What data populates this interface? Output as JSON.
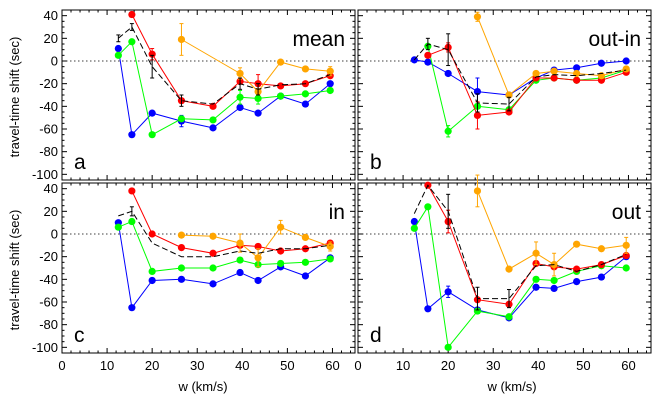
{
  "figure": {
    "ylabel": "travel-time shift (sec)",
    "xlabel": "w (km/s)"
  },
  "chart_data": [
    {
      "type": "line",
      "title": "mean",
      "panel_letter": "a",
      "xlim": [
        0,
        65
      ],
      "ylim": [
        -105,
        45
      ],
      "xticks": [
        0,
        10,
        20,
        30,
        40,
        50,
        60
      ],
      "yticks": [
        -100,
        -80,
        -60,
        -40,
        -20,
        0,
        20,
        40
      ],
      "zero_line": "dotted",
      "series": [
        {
          "color": "#0000ff",
          "x": [
            12.5,
            15.5,
            20,
            26.5,
            33.5,
            39.5,
            43.5,
            48.5,
            54,
            59.5
          ],
          "y": [
            11,
            -65,
            -46,
            -53,
            -59,
            -41,
            -46,
            -31,
            -38,
            -20
          ],
          "err": [
            0,
            0,
            0,
            5,
            0,
            0,
            0,
            0,
            0,
            0
          ]
        },
        {
          "color": "#00ff00",
          "x": [
            12.5,
            15.5,
            20,
            26.5,
            33.5,
            39.5,
            43.5,
            48.5,
            54,
            59.5
          ],
          "y": [
            5,
            17,
            -65,
            -51,
            -52,
            -32,
            -33,
            -31,
            -29,
            -26
          ],
          "err": [
            0,
            0,
            0,
            0,
            0,
            6,
            5,
            0,
            0,
            0
          ]
        },
        {
          "color": "#ff0000",
          "x": [
            15.5,
            20,
            26.5,
            33.5,
            39.5,
            43.5,
            48.5,
            54,
            59.5
          ],
          "y": [
            41,
            6,
            -35,
            -40,
            -18,
            -20,
            -22,
            -20,
            -13
          ],
          "err": [
            0,
            5,
            0,
            0,
            0,
            8,
            0,
            0,
            0
          ]
        },
        {
          "color": "#ffa500",
          "x": [
            26.5,
            39.5,
            43.5,
            48.5,
            54,
            59.5
          ],
          "y": [
            19,
            -11,
            -27,
            -1,
            -7,
            -9
          ],
          "err": [
            14,
            5,
            0,
            0,
            0,
            4
          ]
        },
        {
          "color": "#000000",
          "dashed": true,
          "x": [
            12.5,
            15.5,
            20,
            26.5,
            33.5,
            39.5,
            43.5,
            48.5,
            54,
            59.5
          ],
          "y": [
            20,
            30,
            -5,
            -35,
            -38,
            -20,
            -25,
            -21,
            -20,
            -12
          ],
          "err": [
            3,
            3,
            10,
            5,
            0,
            5,
            5,
            0,
            0,
            0
          ]
        }
      ]
    },
    {
      "type": "line",
      "title": "out-in",
      "panel_letter": "b",
      "xlim": [
        0,
        65
      ],
      "ylim": [
        -105,
        45
      ],
      "xticks": [
        0,
        10,
        20,
        30,
        40,
        50,
        60
      ],
      "yticks": [
        -100,
        -80,
        -60,
        -40,
        -20,
        0,
        20,
        40
      ],
      "zero_line": "dotted",
      "series": [
        {
          "color": "#0000ff",
          "x": [
            12.5,
            15.5,
            20,
            26.5,
            33.5,
            39.5,
            43.5,
            48.5,
            54,
            59.5
          ],
          "y": [
            1,
            -1,
            -11,
            -27,
            -30,
            -15,
            -8,
            -6,
            -2,
            0
          ],
          "err": [
            0,
            0,
            0,
            12,
            0,
            0,
            0,
            0,
            0,
            0
          ]
        },
        {
          "color": "#00ff00",
          "x": [
            15.5,
            20,
            26.5,
            33.5,
            39.5,
            43.5,
            48.5,
            54,
            59.5
          ],
          "y": [
            13,
            -62,
            -40,
            -43,
            -17,
            -15,
            -17,
            -15,
            -8
          ],
          "err": [
            0,
            5,
            0,
            0,
            0,
            0,
            0,
            0,
            0
          ]
        },
        {
          "color": "#ff0000",
          "x": [
            15.5,
            20,
            26.5,
            33.5,
            39.5,
            43.5,
            48.5,
            54,
            59.5
          ],
          "y": [
            5,
            12,
            -48,
            -45,
            -15,
            -15,
            -17,
            -17,
            -10
          ],
          "err": [
            0,
            4,
            12,
            0,
            0,
            0,
            0,
            0,
            0
          ]
        },
        {
          "color": "#ffa500",
          "x": [
            26.5,
            33.5,
            39.5,
            43.5,
            48.5,
            54,
            59.5
          ],
          "y": [
            39,
            -30,
            -11,
            -9,
            -11,
            -13,
            -7
          ],
          "err": [
            4,
            0,
            0,
            0,
            0,
            0,
            0
          ]
        },
        {
          "color": "#000000",
          "dashed": true,
          "x": [
            12.5,
            15.5,
            20,
            26.5,
            33.5,
            39.5,
            43.5,
            48.5,
            54,
            59.5
          ],
          "y": [
            1,
            15,
            10,
            -37,
            -38,
            -14,
            -12,
            -13,
            -11,
            -8
          ],
          "err": [
            0,
            5,
            14,
            8,
            6,
            0,
            0,
            0,
            0,
            0
          ]
        }
      ]
    },
    {
      "type": "line",
      "title": "in",
      "panel_letter": "c",
      "xlim": [
        0,
        65
      ],
      "ylim": [
        -105,
        45
      ],
      "xticks": [
        0,
        10,
        20,
        30,
        40,
        50,
        60
      ],
      "yticks": [
        -100,
        -80,
        -60,
        -40,
        -20,
        0,
        20,
        40
      ],
      "zero_line": "dotted",
      "series": [
        {
          "color": "#0000ff",
          "x": [
            12.5,
            15.5,
            20,
            26.5,
            33.5,
            39.5,
            43.5,
            48.5,
            54,
            59.5
          ],
          "y": [
            10,
            -65,
            -41,
            -40,
            -44,
            -34,
            -41,
            -29,
            -37,
            -21
          ],
          "err": [
            0,
            0,
            0,
            0,
            0,
            0,
            0,
            0,
            0,
            0
          ]
        },
        {
          "color": "#00ff00",
          "x": [
            12.5,
            15.5,
            20,
            26.5,
            33.5,
            39.5,
            43.5,
            48.5,
            54,
            59.5
          ],
          "y": [
            6,
            11,
            -33,
            -30,
            -30,
            -23,
            -27,
            -26,
            -25,
            -22
          ],
          "err": [
            0,
            0,
            0,
            0,
            0,
            0,
            0,
            0,
            0,
            0
          ]
        },
        {
          "color": "#ff0000",
          "x": [
            15.5,
            20,
            26.5,
            33.5,
            39.5,
            43.5,
            48.5,
            54,
            59.5
          ],
          "y": [
            38,
            0,
            -12,
            -17,
            -10,
            -11,
            -15,
            -13,
            -8
          ],
          "err": [
            0,
            0,
            0,
            0,
            0,
            0,
            0,
            0,
            0
          ]
        },
        {
          "color": "#ffa500",
          "x": [
            26.5,
            33.5,
            39.5,
            43.5,
            48.5,
            54,
            59.5
          ],
          "y": [
            -1,
            -2,
            -8,
            -21,
            6,
            -3,
            -11
          ],
          "err": [
            0,
            0,
            8,
            8,
            6,
            0,
            4
          ]
        },
        {
          "color": "#000000",
          "dashed": true,
          "x": [
            12.5,
            15.5,
            20,
            26.5,
            33.5,
            39.5,
            43.5,
            48.5,
            54,
            59.5
          ],
          "y": [
            16,
            20,
            -8,
            -20,
            -20,
            -15,
            -17,
            -13,
            -13,
            -10
          ],
          "err": [
            0,
            4,
            0,
            0,
            0,
            0,
            0,
            0,
            0,
            0
          ]
        }
      ]
    },
    {
      "type": "line",
      "title": "out",
      "panel_letter": "d",
      "xlim": [
        0,
        65
      ],
      "ylim": [
        -105,
        45
      ],
      "xticks": [
        0,
        10,
        20,
        30,
        40,
        50,
        60
      ],
      "yticks": [
        -100,
        -80,
        -60,
        -40,
        -20,
        0,
        20,
        40
      ],
      "zero_line": "dotted",
      "series": [
        {
          "color": "#0000ff",
          "x": [
            12.5,
            15.5,
            20,
            26.5,
            33.5,
            39.5,
            43.5,
            48.5,
            54,
            59.5
          ],
          "y": [
            11,
            -66,
            -51,
            -67,
            -74,
            -47,
            -48,
            -42,
            -38,
            -20
          ],
          "err": [
            0,
            0,
            5,
            0,
            0,
            0,
            0,
            0,
            0,
            0
          ]
        },
        {
          "color": "#00ff00",
          "x": [
            12.5,
            15.5,
            20,
            26.5,
            33.5,
            39.5,
            43.5,
            48.5,
            54,
            59.5
          ],
          "y": [
            5,
            24,
            -100,
            -68,
            -73,
            -40,
            -41,
            -33,
            -28,
            -30
          ],
          "err": [
            0,
            0,
            0,
            0,
            0,
            0,
            0,
            0,
            0,
            0
          ]
        },
        {
          "color": "#ff0000",
          "x": [
            15.5,
            20,
            26.5,
            33.5,
            39.5,
            43.5,
            48.5,
            54,
            59.5
          ],
          "y": [
            43,
            11,
            -58,
            -62,
            -26,
            -29,
            -31,
            -27,
            -19
          ],
          "err": [
            0,
            10,
            0,
            0,
            0,
            0,
            0,
            0,
            0
          ]
        },
        {
          "color": "#ffa500",
          "x": [
            26.5,
            33.5,
            39.5,
            43.5,
            48.5,
            54,
            59.5
          ],
          "y": [
            38,
            -31,
            -17,
            -27,
            -9,
            -13,
            -10
          ],
          "err": [
            14,
            0,
            10,
            10,
            0,
            0,
            7
          ]
        },
        {
          "color": "#000000",
          "dashed": true,
          "x": [
            12.5,
            15.5,
            20,
            26.5,
            33.5,
            39.5,
            43.5,
            48.5,
            54,
            59.5
          ],
          "y": [
            18,
            43,
            20,
            -57,
            -57,
            -28,
            -27,
            -33,
            -27,
            -18
          ],
          "err": [
            0,
            0,
            15,
            10,
            8,
            0,
            0,
            0,
            0,
            0
          ]
        }
      ]
    }
  ]
}
